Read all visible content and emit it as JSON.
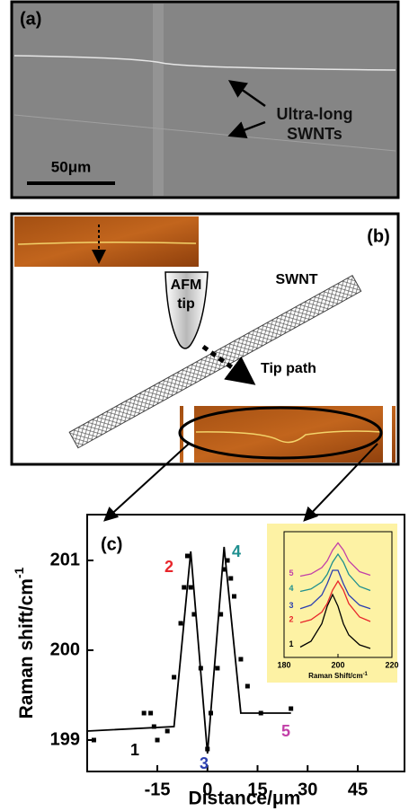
{
  "panel_a": {
    "label": "(a)",
    "annotation_lines": [
      "Ultra-long",
      "SWNTs"
    ],
    "scale_bar": "50μm"
  },
  "panel_b": {
    "label": "(b)",
    "tip_lines": [
      "AFM",
      "tip"
    ],
    "tube": "SWNT",
    "path": "Tip path"
  },
  "chart_data": [
    {
      "type": "scatter",
      "panel_label": "(c)",
      "xlabel": "Distance/μm",
      "ylabel": "Raman shift/cm",
      "ylabel_sup": "-1",
      "xlim": [
        -36,
        59
      ],
      "ylim": [
        198.65,
        201.51
      ],
      "xticks": [
        -15,
        0,
        15,
        30,
        45
      ],
      "yticks": [
        199,
        200,
        201
      ],
      "series": [
        {
          "style": "markers",
          "color": "#000000",
          "x": [
            -34,
            -19,
            -17,
            -16,
            -15,
            -12,
            -10,
            -8,
            -7,
            -6,
            -5,
            -4,
            -2,
            0,
            1,
            3,
            4,
            5,
            6,
            7,
            8,
            10,
            12,
            16,
            25
          ],
          "values": [
            199.0,
            199.3,
            199.3,
            199.15,
            199.0,
            199.1,
            199.7,
            200.3,
            200.7,
            201.05,
            200.7,
            200.4,
            199.8,
            198.9,
            199.3,
            199.8,
            200.4,
            200.9,
            201.0,
            200.8,
            200.6,
            199.9,
            199.6,
            199.3,
            199.35
          ]
        },
        {
          "style": "line",
          "color": "#000000",
          "x": [
            -36,
            -10,
            -5,
            0,
            5,
            10,
            25
          ],
          "values": [
            199.1,
            199.15,
            201.1,
            198.85,
            201.15,
            199.3,
            199.3
          ]
        }
      ],
      "point_labels": [
        {
          "text": "1",
          "color": "#000000"
        },
        {
          "text": "2",
          "color": "#e8262b"
        },
        {
          "text": "3",
          "color": "#2b3fb0"
        },
        {
          "text": "4",
          "color": "#1f8f8f"
        },
        {
          "text": "5",
          "color": "#c23fa8"
        }
      ]
    },
    {
      "type": "line",
      "xlabel": "Raman Shift/cm",
      "xlabel_sup": "-1",
      "xlim": [
        180,
        220
      ],
      "ylim": [
        0,
        5.6
      ],
      "xticks": [
        180,
        200,
        220
      ],
      "background": "#fdf2a4",
      "x": [
        186,
        190,
        194,
        196,
        198,
        200,
        202,
        204,
        208,
        212
      ],
      "series": [
        {
          "name": "1",
          "color": "#000000",
          "values": [
            0.46,
            0.72,
            1.5,
            2.28,
            2.8,
            2.28,
            1.5,
            1.0,
            0.56,
            0.4
          ]
        },
        {
          "name": "2",
          "color": "#e8262b",
          "values": [
            1.55,
            1.68,
            2.02,
            2.4,
            3.0,
            3.4,
            3.0,
            2.4,
            1.8,
            1.6
          ]
        },
        {
          "name": "3",
          "color": "#2b3fb0",
          "values": [
            2.17,
            2.33,
            2.78,
            3.28,
            3.88,
            3.88,
            3.28,
            2.78,
            2.33,
            2.17
          ]
        },
        {
          "name": "4",
          "color": "#1f8f8f",
          "values": [
            2.94,
            3.05,
            3.36,
            3.7,
            4.24,
            4.6,
            4.24,
            3.7,
            3.16,
            2.98
          ]
        },
        {
          "name": "5",
          "color": "#c23fa8",
          "values": [
            3.62,
            3.72,
            4.0,
            4.3,
            4.78,
            5.1,
            4.78,
            4.3,
            3.82,
            3.66
          ]
        }
      ]
    }
  ]
}
